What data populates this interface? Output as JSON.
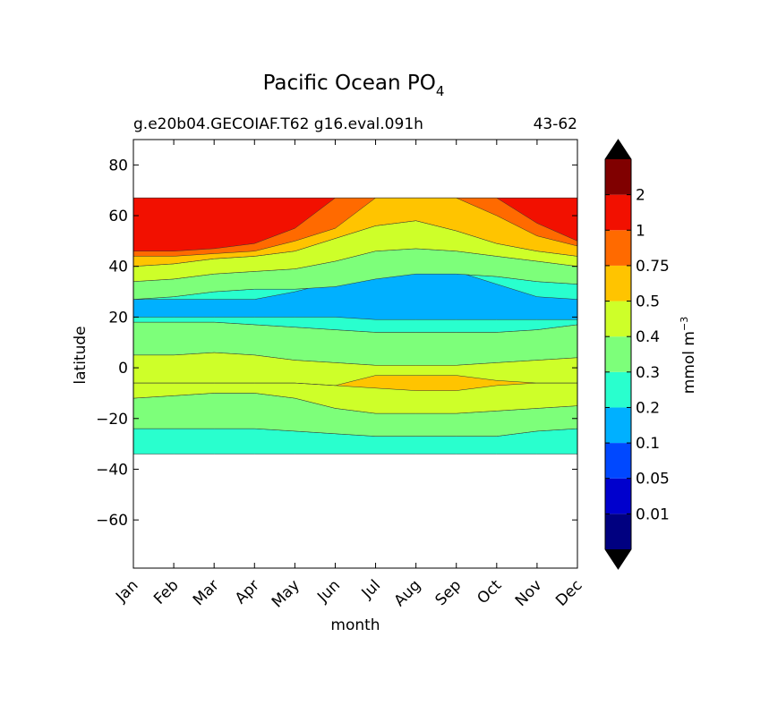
{
  "chart_data": {
    "type": "heatmap",
    "subtype": "filled-contour",
    "title": "Pacific Ocean PO",
    "title_subscript": "4",
    "subtitle_left": "g.e20b04.GECOIAF.T62 g16.eval.091h",
    "subtitle_right": "43-62",
    "xlabel": "month",
    "ylabel": "latitude",
    "x_categories": [
      "Jan",
      "Feb",
      "Mar",
      "Apr",
      "May",
      "Jun",
      "Jul",
      "Aug",
      "Sep",
      "Oct",
      "Nov",
      "Dec"
    ],
    "xlim": [
      1,
      12
    ],
    "ylim": [
      -79,
      90
    ],
    "y_ticks": [
      80,
      60,
      40,
      20,
      0,
      -20,
      -40,
      -60
    ],
    "y_tick_labels": [
      "80",
      "60",
      "40",
      "20",
      "0",
      "−20",
      "−40",
      "−60"
    ],
    "data_lat_range": [
      -34,
      67
    ],
    "colorbar": {
      "label": "mmol m",
      "label_superscript": "−3",
      "extend": "both",
      "levels": [
        0.01,
        0.05,
        0.1,
        0.2,
        0.3,
        0.4,
        0.5,
        0.75,
        1,
        2
      ],
      "level_labels": [
        "0.01",
        "0.05",
        "0.1",
        "0.2",
        "0.3",
        "0.4",
        "0.5",
        "0.75",
        "1",
        "2"
      ],
      "colors": [
        "#000080",
        "#0000cd",
        "#0048ff",
        "#00b0ff",
        "#29ffce",
        "#7dff7a",
        "#ceff29",
        "#ffc400",
        "#ff6a00",
        "#f21000",
        "#800000"
      ],
      "under_color": "#000000",
      "over_color": "#000000"
    },
    "bands": [
      {
        "level_index": 4,
        "upper": [
          -24,
          -24,
          -24,
          -24,
          -25,
          -26,
          -27,
          -27,
          -27,
          -27,
          -25,
          -24
        ],
        "lower": [
          -34,
          -34,
          -34,
          -34,
          -34,
          -34,
          -34,
          -34,
          -34,
          -34,
          -34,
          -34
        ]
      },
      {
        "level_index": 5,
        "upper": [
          -12,
          -11,
          -10,
          -10,
          -12,
          -16,
          -18,
          -18,
          -18,
          -17,
          -16,
          -15
        ],
        "lower": [
          -24,
          -24,
          -24,
          -24,
          -25,
          -26,
          -27,
          -27,
          -27,
          -27,
          -25,
          -24
        ]
      },
      {
        "level_index": 5,
        "upper": [
          18,
          18,
          18,
          17,
          16,
          15,
          14,
          14,
          14,
          14,
          15,
          17
        ],
        "lower": [
          5,
          5,
          6,
          5,
          3,
          2,
          1,
          1,
          1,
          2,
          3,
          4
        ]
      },
      {
        "level_index": 6,
        "upper": [
          5,
          5,
          6,
          5,
          3,
          2,
          1,
          1,
          1,
          2,
          3,
          4
        ],
        "lower": [
          -12,
          -11,
          -10,
          -10,
          -12,
          -16,
          -18,
          -18,
          -18,
          -17,
          -16,
          -15
        ]
      },
      {
        "level_index": 7,
        "upper": [
          -6,
          -6,
          -6,
          -6,
          -6,
          -7,
          -3,
          -3,
          -3,
          -5,
          -6,
          -6
        ],
        "lower": [
          -6,
          -6,
          -6,
          -6,
          -6,
          -7,
          -8,
          -9,
          -9,
          -7,
          -6,
          -6
        ]
      },
      {
        "level_index": 4,
        "upper": [
          27,
          28,
          30,
          31,
          31,
          32,
          35,
          37,
          37,
          36,
          34,
          33
        ],
        "lower": [
          18,
          18,
          18,
          17,
          16,
          15,
          14,
          14,
          14,
          14,
          15,
          17
        ]
      },
      {
        "level_index": 3,
        "upper": [
          27,
          27,
          27,
          27,
          30,
          34,
          36,
          38,
          38,
          33,
          28,
          27
        ],
        "lower": [
          20,
          20,
          20,
          20,
          20,
          20,
          19,
          19,
          19,
          19,
          19,
          19
        ]
      },
      {
        "level_index": 5,
        "upper": [
          34,
          35,
          37,
          38,
          39,
          42,
          46,
          47,
          46,
          44,
          42,
          40
        ],
        "lower": [
          27,
          28,
          30,
          31,
          31,
          32,
          35,
          37,
          37,
          36,
          34,
          33
        ]
      },
      {
        "level_index": 6,
        "upper": [
          40,
          41,
          43,
          44,
          46,
          51,
          56,
          58,
          54,
          49,
          46,
          44
        ],
        "lower": [
          34,
          35,
          37,
          38,
          39,
          42,
          46,
          47,
          46,
          44,
          42,
          40
        ]
      },
      {
        "level_index": 7,
        "upper": [
          67,
          67,
          67,
          67,
          67,
          67,
          67,
          67,
          67,
          67,
          67,
          67
        ],
        "lower": [
          40,
          41,
          43,
          44,
          46,
          51,
          56,
          58,
          54,
          49,
          46,
          44
        ]
      },
      {
        "level_index": 8,
        "upper": [
          67,
          67,
          67,
          67,
          67,
          67,
          67,
          67,
          67,
          67,
          67,
          67
        ],
        "lower": [
          44,
          44,
          45,
          46,
          50,
          55,
          67,
          67,
          67,
          60,
          52,
          48
        ]
      },
      {
        "level_index": 9,
        "upper": [
          67,
          67,
          67,
          67,
          67,
          67,
          67,
          67,
          67,
          67,
          67,
          67
        ],
        "lower": [
          46,
          46,
          47,
          49,
          55,
          67,
          67,
          67,
          67,
          67,
          57,
          50
        ]
      }
    ]
  }
}
